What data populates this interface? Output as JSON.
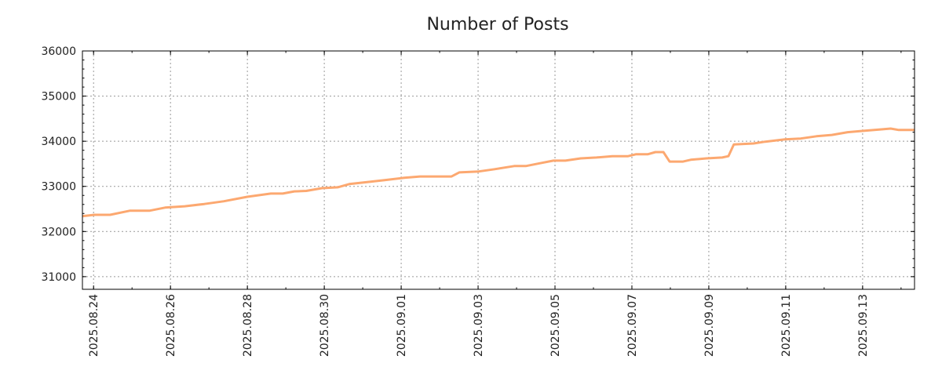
{
  "chart_data": {
    "type": "line",
    "title": "Number of Posts",
    "xlabel": "",
    "ylabel": "",
    "x_unit": "days since 2025.08.24",
    "xlim": [
      -0.29,
      21.35
    ],
    "ylim": [
      30720,
      36000
    ],
    "grid": true,
    "line_color": "#fca870",
    "x_ticks": [
      {
        "value": 0,
        "label": "2025.08.24"
      },
      {
        "value": 2,
        "label": "2025.08.26"
      },
      {
        "value": 4,
        "label": "2025.08.28"
      },
      {
        "value": 6,
        "label": "2025.08.30"
      },
      {
        "value": 8,
        "label": "2025.09.01"
      },
      {
        "value": 10,
        "label": "2025.09.03"
      },
      {
        "value": 12,
        "label": "2025.09.05"
      },
      {
        "value": 14,
        "label": "2025.09.07"
      },
      {
        "value": 16,
        "label": "2025.09.09"
      },
      {
        "value": 18,
        "label": "2025.09.11"
      },
      {
        "value": 20,
        "label": "2025.09.13"
      }
    ],
    "y_ticks": [
      {
        "value": 31000,
        "label": "31000"
      },
      {
        "value": 32000,
        "label": "32000"
      },
      {
        "value": 33000,
        "label": "33000"
      },
      {
        "value": 34000,
        "label": "34000"
      },
      {
        "value": 35000,
        "label": "35000"
      },
      {
        "value": 36000,
        "label": "36000"
      }
    ],
    "series": [
      {
        "name": "Number of Posts",
        "x": [
          -0.29,
          0.02,
          0.43,
          0.94,
          1.45,
          1.86,
          2.37,
          2.88,
          3.39,
          4.0,
          4.61,
          4.92,
          5.22,
          5.53,
          5.94,
          6.35,
          6.65,
          7.16,
          7.57,
          8.08,
          8.49,
          9.31,
          9.51,
          10.02,
          10.43,
          10.94,
          11.24,
          11.65,
          11.96,
          12.27,
          12.67,
          13.08,
          13.49,
          13.9,
          14.1,
          14.41,
          14.61,
          14.82,
          14.98,
          15.33,
          15.53,
          15.94,
          16.35,
          16.51,
          16.65,
          17.16,
          17.47,
          17.98,
          18.39,
          18.8,
          19.2,
          19.61,
          20.02,
          20.43,
          20.73,
          20.94,
          21.35
        ],
        "y": [
          32340,
          32370,
          32370,
          32460,
          32460,
          32530,
          32560,
          32610,
          32670,
          32770,
          32840,
          32840,
          32890,
          32900,
          32960,
          32980,
          33050,
          33100,
          33140,
          33190,
          33220,
          33220,
          33310,
          33330,
          33380,
          33450,
          33450,
          33520,
          33570,
          33570,
          33620,
          33640,
          33670,
          33670,
          33710,
          33710,
          33760,
          33760,
          33550,
          33550,
          33590,
          33620,
          33640,
          33670,
          33930,
          33950,
          33990,
          34040,
          34060,
          34110,
          34140,
          34200,
          34230,
          34260,
          34280,
          34250,
          34250
        ]
      }
    ]
  }
}
